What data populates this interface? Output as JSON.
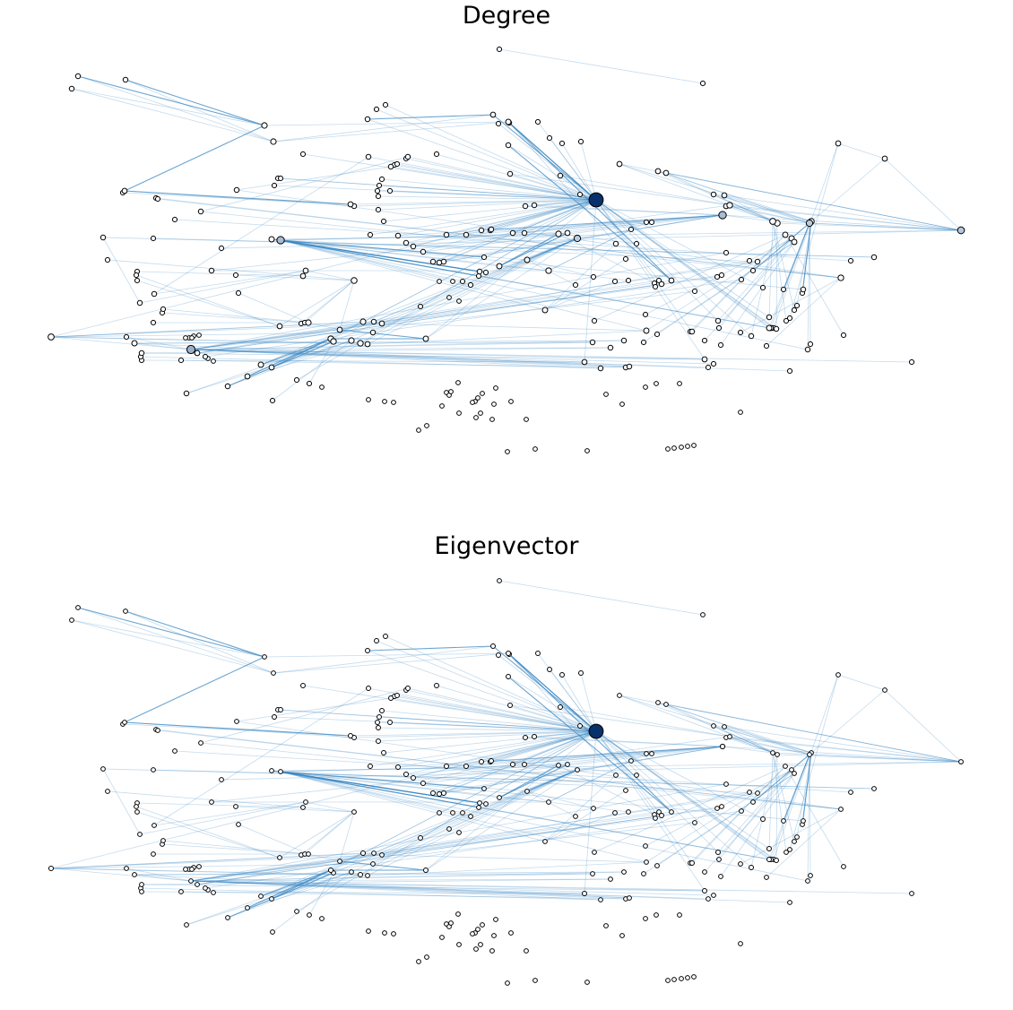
{
  "titles": {
    "degree": "Degree",
    "eigenvector": "Eigenvector"
  },
  "colors": {
    "edge": "#3a87c2",
    "node_low": "#dbe9f6",
    "node_high": "#08306b",
    "node_stroke": "#000000",
    "background": "#ffffff"
  },
  "measures": {
    "degree": "Degree",
    "eigenvector": "Eigenvector"
  }
}
